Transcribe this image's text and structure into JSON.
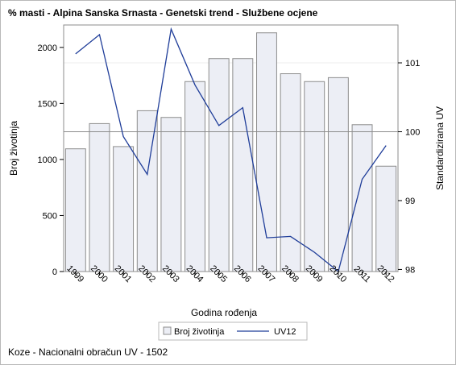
{
  "chart_data": {
    "type": "bar+line",
    "title": "% masti - Alpina Sanska Srnasta - Genetski trend - Službene ocjene",
    "footnote": "Koze - Nacionalni obračun UV - 1502",
    "xlabel": "Godina rođenja",
    "ylabel_left": "Broj životinja",
    "ylabel_right": "Standardizirana UV",
    "categories": [
      "1999",
      "2000",
      "2001",
      "2002",
      "2003",
      "2004",
      "2005",
      "2006",
      "2007",
      "2008",
      "2009",
      "2010",
      "2011",
      "2012"
    ],
    "y_left_ticks": [
      "0",
      "500",
      "1000",
      "1500",
      "2000"
    ],
    "y_left_range": [
      0,
      2200
    ],
    "y_right_ticks": [
      "98",
      "99",
      "100",
      "101"
    ],
    "y_right_range": [
      97.97,
      101.55
    ],
    "reference_line_right": 100,
    "series": [
      {
        "name": "Broj životinja",
        "kind": "bar",
        "axis": "left",
        "color": "#eceef5",
        "values": [
          1095,
          1320,
          1115,
          1435,
          1375,
          1695,
          1900,
          1900,
          2130,
          1765,
          1695,
          1730,
          1310,
          940
        ]
      },
      {
        "name": "UV12",
        "kind": "line",
        "axis": "right",
        "color": "#1f3d99",
        "values": [
          101.13,
          101.41,
          99.93,
          99.38,
          101.49,
          100.68,
          100.09,
          100.35,
          98.46,
          98.48,
          98.25,
          97.97,
          99.31,
          99.8
        ]
      }
    ],
    "legend_position": "bottom-center"
  }
}
